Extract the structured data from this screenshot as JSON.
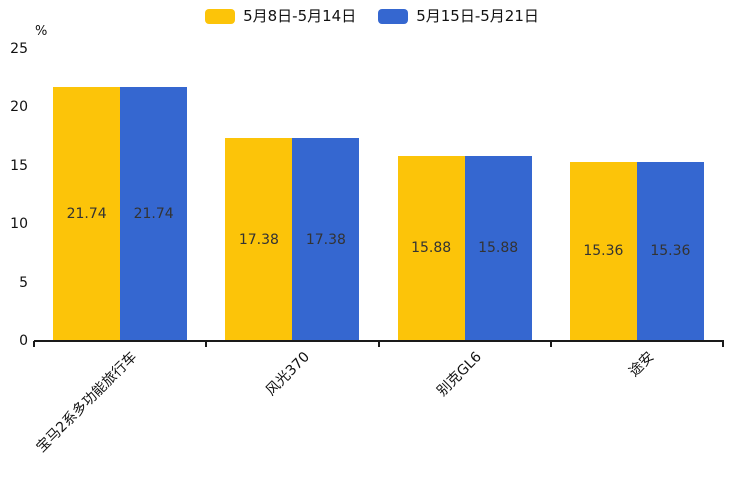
{
  "chart_data": {
    "type": "bar",
    "title": "",
    "ylabel": "%",
    "xlabel": "",
    "categories": [
      "宝马2系多功能旅行车",
      "风光370",
      "别克GL6",
      "途安"
    ],
    "series": [
      {
        "name": "5月8日-5月14日",
        "color": "#FCC409",
        "values": [
          21.74,
          17.38,
          15.88,
          15.36
        ]
      },
      {
        "name": "5月15日-5月21日",
        "color": "#3567D0",
        "values": [
          21.74,
          17.38,
          15.88,
          15.36
        ]
      }
    ],
    "ylim": [
      0,
      25
    ],
    "yticks": [
      0,
      5,
      10,
      15,
      20,
      25
    ],
    "grid": false,
    "legend_position": "top-center",
    "value_labels": true,
    "value_label_color": "#333333",
    "axis_color": "#1a1a1a",
    "tick_label_color": "#111111",
    "background_color": "#ffffff"
  }
}
